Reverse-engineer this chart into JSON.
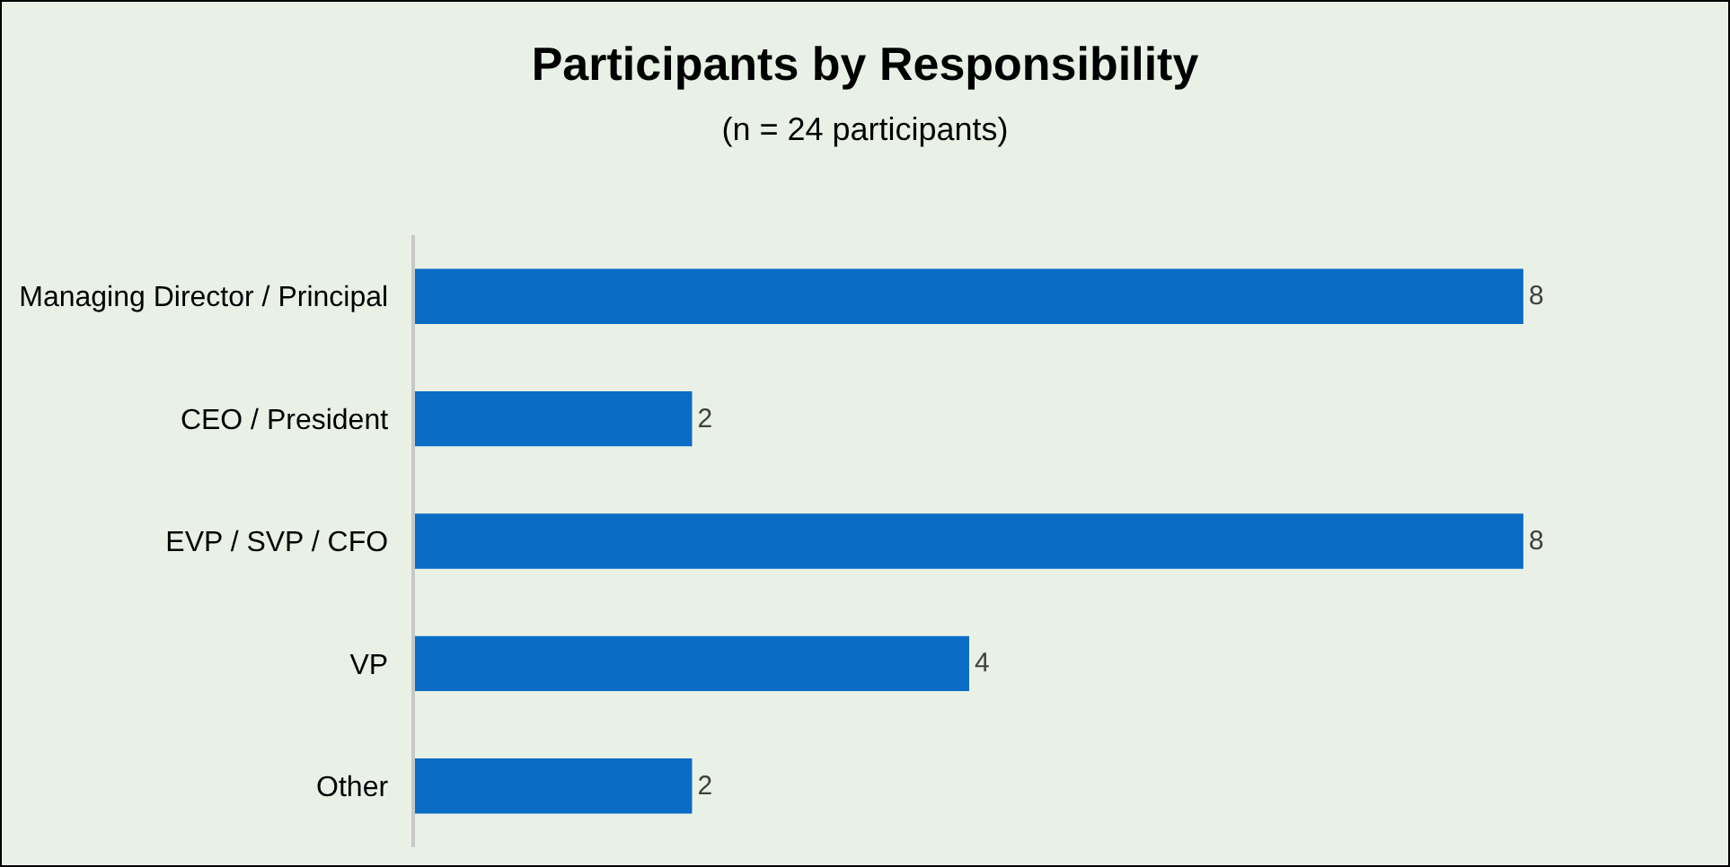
{
  "chart_data": {
    "type": "bar",
    "title": "Participants by Responsibility",
    "subtitle": "(n = 24 participants)",
    "orientation": "horizontal",
    "categories": [
      "Managing Director / Principal",
      "CEO / President",
      "EVP / SVP / CFO",
      "VP",
      "Other"
    ],
    "values": [
      8,
      2,
      8,
      4,
      2
    ],
    "color": "#0a6cc4",
    "data_labels": true,
    "grid": false,
    "tick_labels": "y"
  }
}
